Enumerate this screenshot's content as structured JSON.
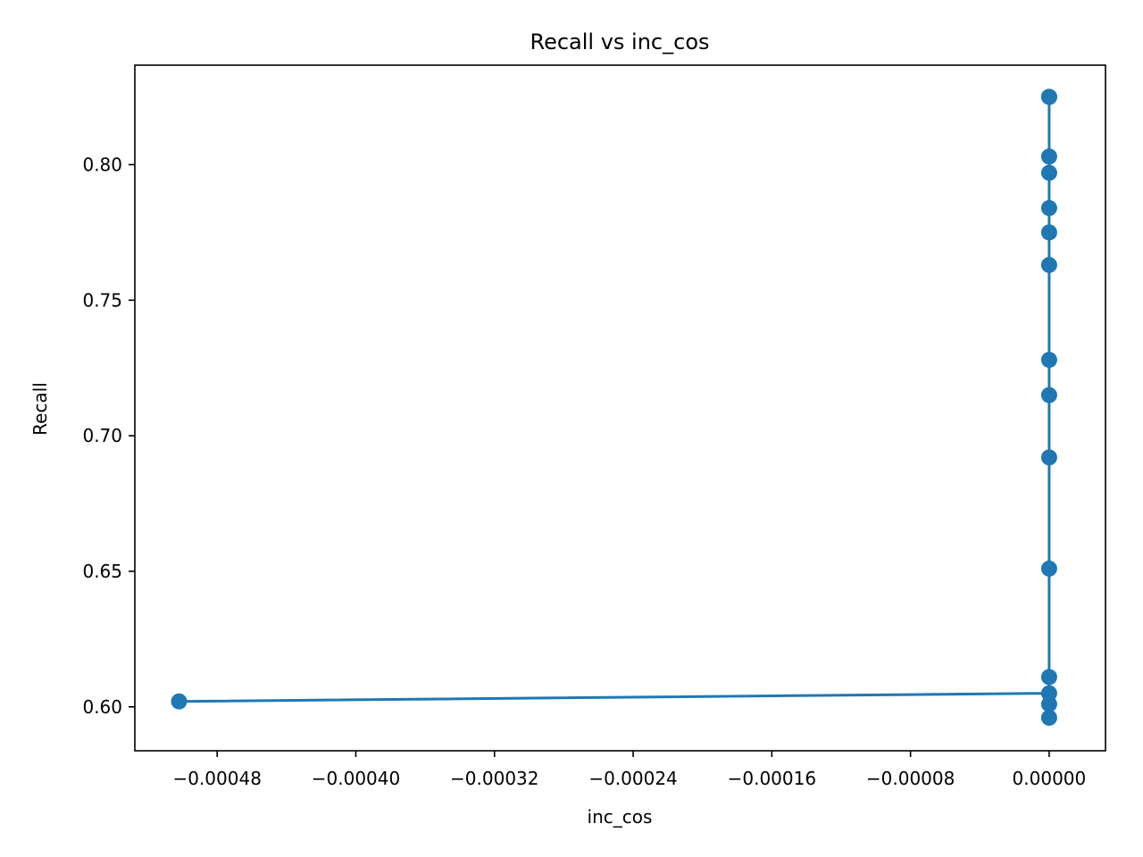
{
  "chart_data": {
    "type": "line",
    "title": "Recall vs inc_cos",
    "xlabel": "inc_cos",
    "ylabel": "Recall",
    "xlim": [
      -0.0005275,
      3.25e-05
    ],
    "ylim": [
      0.5838,
      0.8367
    ],
    "x_ticks": [
      -0.00048,
      -0.0004,
      -0.00032,
      -0.00024,
      -0.00016,
      -8e-05,
      0.0
    ],
    "x_tick_labels": [
      "−0.00048",
      "−0.00040",
      "−0.00032",
      "−0.00024",
      "−0.00016",
      "−0.00008",
      "0.00000"
    ],
    "y_ticks": [
      0.6,
      0.65,
      0.7,
      0.75,
      0.8
    ],
    "y_tick_labels": [
      "0.60",
      "0.65",
      "0.70",
      "0.75",
      "0.80"
    ],
    "grid": false,
    "series": [
      {
        "color": "#1f77b4",
        "marker": "circle",
        "x": [
          -0.000502,
          0.0,
          0.0,
          0.0,
          0.0,
          0.0,
          0.0,
          0.0,
          0.0,
          0.0,
          0.0,
          0.0,
          0.0,
          0.0,
          0.0,
          0.0
        ],
        "y": [
          0.602,
          0.605,
          0.601,
          0.596,
          0.611,
          0.651,
          0.692,
          0.715,
          0.728,
          0.763,
          0.775,
          0.784,
          0.797,
          0.803,
          0.825,
          0.825
        ]
      }
    ]
  }
}
